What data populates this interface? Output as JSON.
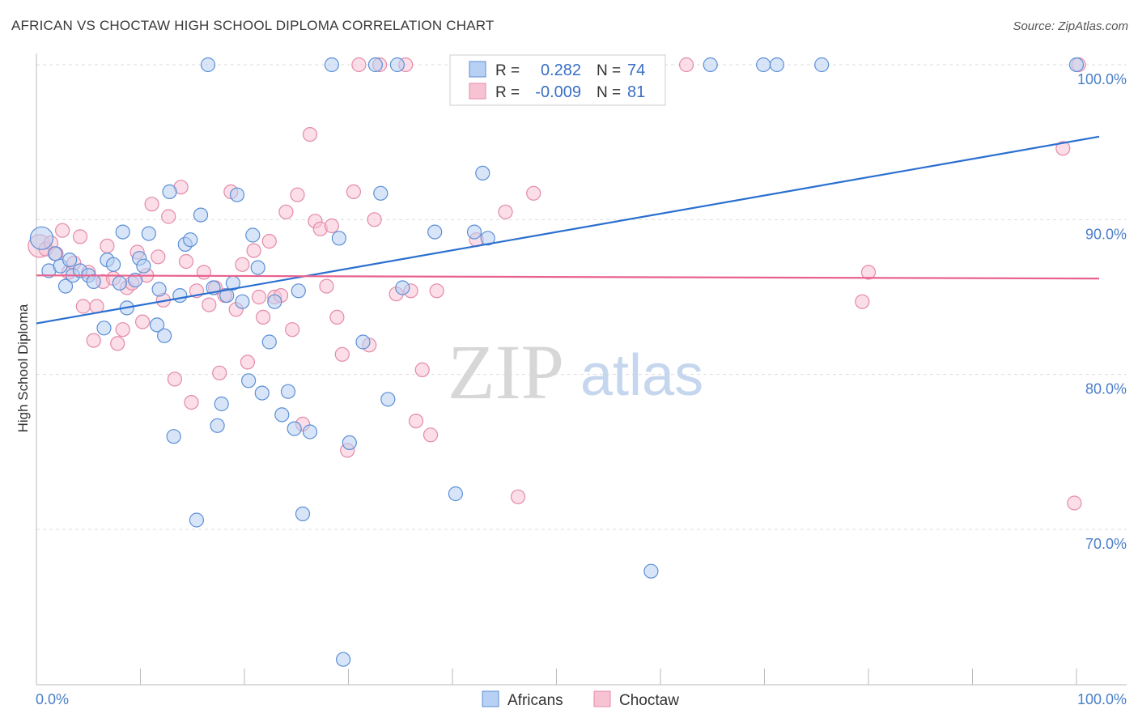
{
  "title": "AFRICAN VS CHOCTAW HIGH SCHOOL DIPLOMA CORRELATION CHART",
  "source": "Source: ZipAtlas.com",
  "watermark": {
    "zip": "ZIP",
    "atlas": "atlas"
  },
  "colors": {
    "blue": "#5b8fd6",
    "blue_fill": "#b8d0f3",
    "blue_line": "#2a6fcf",
    "pink": "#e48aa8",
    "pink_fill": "#f7c3d3",
    "pink_line": "#e8628f",
    "tick_text": "#4a7fc9",
    "grid": "#dddddd"
  },
  "legend_top": {
    "rows": [
      {
        "r_label": "R =",
        "r_value": "0.282",
        "n_label": "N =",
        "n_value": "74"
      },
      {
        "r_label": "R =",
        "r_value": "-0.009",
        "n_label": "N =",
        "n_value": "81"
      }
    ]
  },
  "legend_bottom": {
    "africans": "Africans",
    "choctaw": "Choctaw"
  },
  "chart_data": {
    "type": "scatter",
    "title": "AFRICAN VS CHOCTAW HIGH SCHOOL DIPLOMA CORRELATION CHART",
    "xlabel": "",
    "ylabel": "High School Diploma",
    "xlim": [
      0,
      100
    ],
    "ylim": [
      61.5,
      101.5
    ],
    "x_tick_labels": [
      "0.0%",
      "100.0%"
    ],
    "y_ticks": [
      70,
      80,
      90,
      100
    ],
    "y_tick_labels": [
      "70.0%",
      "80.0%",
      "90.0%",
      "100.0%"
    ],
    "grid": true,
    "legend_placement": "bottom-center",
    "series": [
      {
        "name": "Africans",
        "R": 0.282,
        "N": 74,
        "trend": {
          "x": [
            0,
            100
          ],
          "y": [
            83.3,
            95.1
          ]
        },
        "points": [
          [
            0.5,
            88.8
          ],
          [
            1.2,
            86.7
          ],
          [
            1.8,
            87.8
          ],
          [
            2.3,
            87.0
          ],
          [
            2.8,
            85.7
          ],
          [
            3.2,
            87.4
          ],
          [
            3.5,
            86.4
          ],
          [
            4.2,
            86.7
          ],
          [
            5.0,
            86.4
          ],
          [
            5.5,
            86.0
          ],
          [
            6.5,
            83.0
          ],
          [
            6.8,
            87.4
          ],
          [
            7.4,
            87.1
          ],
          [
            8.0,
            85.9
          ],
          [
            8.3,
            89.2
          ],
          [
            8.7,
            84.3
          ],
          [
            9.5,
            86.1
          ],
          [
            9.9,
            87.5
          ],
          [
            10.3,
            87.0
          ],
          [
            10.8,
            89.1
          ],
          [
            11.6,
            83.2
          ],
          [
            11.8,
            85.5
          ],
          [
            12.3,
            82.5
          ],
          [
            12.8,
            91.8
          ],
          [
            13.2,
            76.0
          ],
          [
            13.8,
            85.1
          ],
          [
            14.3,
            88.4
          ],
          [
            14.8,
            88.7
          ],
          [
            15.4,
            70.6
          ],
          [
            15.8,
            90.3
          ],
          [
            16.5,
            100.0
          ],
          [
            17.0,
            85.6
          ],
          [
            17.4,
            76.7
          ],
          [
            17.8,
            78.1
          ],
          [
            18.3,
            85.1
          ],
          [
            18.9,
            85.9
          ],
          [
            19.3,
            91.6
          ],
          [
            19.8,
            84.7
          ],
          [
            20.4,
            79.6
          ],
          [
            20.8,
            89.0
          ],
          [
            21.3,
            86.9
          ],
          [
            21.7,
            78.8
          ],
          [
            22.4,
            82.1
          ],
          [
            22.9,
            84.7
          ],
          [
            23.6,
            77.4
          ],
          [
            24.2,
            78.9
          ],
          [
            24.8,
            76.5
          ],
          [
            25.2,
            85.4
          ],
          [
            25.6,
            71.0
          ],
          [
            26.3,
            76.3
          ],
          [
            28.4,
            100.0
          ],
          [
            29.1,
            88.8
          ],
          [
            29.5,
            61.6
          ],
          [
            30.1,
            75.6
          ],
          [
            31.4,
            82.1
          ],
          [
            32.6,
            100.0
          ],
          [
            33.1,
            91.7
          ],
          [
            33.8,
            78.4
          ],
          [
            34.7,
            100.0
          ],
          [
            35.2,
            85.6
          ],
          [
            38.3,
            89.2
          ],
          [
            40.3,
            72.3
          ],
          [
            42.1,
            89.2
          ],
          [
            42.9,
            93.0
          ],
          [
            43.4,
            88.8
          ],
          [
            59.1,
            67.3
          ],
          [
            64.8,
            100.0
          ],
          [
            69.9,
            100.0
          ],
          [
            71.2,
            100.0
          ],
          [
            75.5,
            100.0
          ],
          [
            100.0,
            100.0
          ]
        ]
      },
      {
        "name": "Choctaw",
        "R": -0.009,
        "N": 81,
        "trend": {
          "x": [
            0,
            100
          ],
          "y": [
            86.4,
            86.2
          ]
        },
        "points": [
          [
            0.3,
            88.3
          ],
          [
            0.9,
            88.1
          ],
          [
            1.4,
            88.5
          ],
          [
            1.9,
            87.8
          ],
          [
            2.5,
            89.3
          ],
          [
            3.1,
            86.6
          ],
          [
            3.6,
            87.2
          ],
          [
            4.2,
            88.9
          ],
          [
            4.5,
            84.4
          ],
          [
            5.0,
            86.6
          ],
          [
            5.5,
            82.2
          ],
          [
            5.8,
            84.4
          ],
          [
            6.4,
            86.0
          ],
          [
            6.8,
            88.3
          ],
          [
            7.4,
            86.2
          ],
          [
            7.8,
            82.0
          ],
          [
            8.3,
            82.9
          ],
          [
            8.7,
            85.6
          ],
          [
            9.2,
            85.9
          ],
          [
            9.7,
            87.9
          ],
          [
            10.2,
            83.4
          ],
          [
            10.6,
            86.4
          ],
          [
            11.1,
            91.0
          ],
          [
            11.7,
            87.6
          ],
          [
            12.2,
            84.8
          ],
          [
            12.7,
            90.2
          ],
          [
            13.3,
            79.7
          ],
          [
            13.9,
            92.1
          ],
          [
            14.4,
            87.3
          ],
          [
            14.9,
            78.2
          ],
          [
            15.4,
            85.4
          ],
          [
            16.1,
            86.6
          ],
          [
            16.6,
            84.5
          ],
          [
            17.2,
            85.6
          ],
          [
            17.6,
            80.1
          ],
          [
            18.1,
            85.1
          ],
          [
            18.7,
            91.8
          ],
          [
            19.2,
            84.2
          ],
          [
            19.8,
            87.1
          ],
          [
            20.3,
            80.8
          ],
          [
            20.9,
            88.0
          ],
          [
            21.4,
            85.0
          ],
          [
            21.8,
            83.7
          ],
          [
            22.4,
            88.6
          ],
          [
            22.9,
            85.0
          ],
          [
            23.5,
            85.1
          ],
          [
            24.0,
            90.5
          ],
          [
            24.6,
            82.9
          ],
          [
            25.1,
            91.6
          ],
          [
            25.6,
            76.8
          ],
          [
            26.3,
            95.5
          ],
          [
            26.8,
            89.9
          ],
          [
            27.3,
            89.4
          ],
          [
            27.9,
            85.7
          ],
          [
            28.4,
            89.6
          ],
          [
            28.9,
            83.7
          ],
          [
            29.4,
            81.3
          ],
          [
            29.9,
            75.1
          ],
          [
            30.5,
            91.8
          ],
          [
            31.0,
            100.0
          ],
          [
            32.0,
            81.9
          ],
          [
            32.5,
            90.0
          ],
          [
            33.0,
            100.0
          ],
          [
            34.6,
            85.2
          ],
          [
            35.5,
            100.0
          ],
          [
            36.0,
            85.4
          ],
          [
            36.5,
            77.0
          ],
          [
            37.1,
            80.3
          ],
          [
            37.9,
            76.1
          ],
          [
            38.5,
            85.4
          ],
          [
            42.3,
            88.7
          ],
          [
            45.1,
            90.5
          ],
          [
            46.3,
            72.1
          ],
          [
            47.8,
            91.7
          ],
          [
            62.5,
            100.0
          ],
          [
            79.4,
            84.7
          ],
          [
            80.0,
            86.6
          ],
          [
            98.7,
            94.6
          ],
          [
            99.8,
            71.7
          ],
          [
            100.2,
            100.0
          ]
        ]
      }
    ]
  }
}
